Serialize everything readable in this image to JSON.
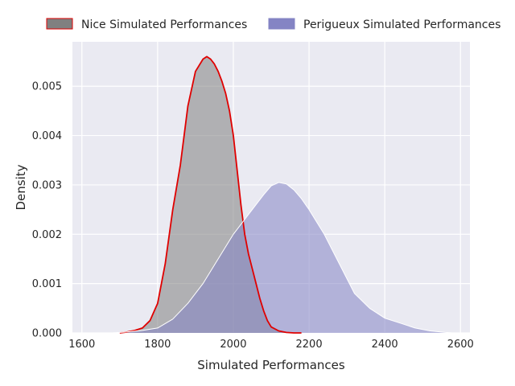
{
  "chart_data": {
    "type": "area",
    "title": "",
    "xlabel": "Simulated Performances",
    "ylabel": "Density",
    "xlim": [
      1575,
      2625
    ],
    "ylim": [
      0,
      0.0059
    ],
    "xticks": [
      1600,
      1800,
      2000,
      2200,
      2400,
      2600
    ],
    "yticks": [
      0.0,
      0.001,
      0.002,
      0.003,
      0.004,
      0.005,
      0.006
    ],
    "ytick_labels": [
      "0.000",
      "0.001",
      "0.002",
      "0.003",
      "0.004",
      "0.005"
    ],
    "grid": true,
    "legend_position": "top",
    "series": [
      {
        "name": "Nice Simulated Performances",
        "fill": "#808080",
        "line": "#e00000",
        "x": [
          1700,
          1720,
          1740,
          1760,
          1780,
          1800,
          1820,
          1840,
          1860,
          1880,
          1900,
          1920,
          1930,
          1940,
          1950,
          1960,
          1970,
          1980,
          1990,
          2000,
          2010,
          2020,
          2030,
          2040,
          2050,
          2060,
          2070,
          2080,
          2090,
          2100,
          2120,
          2140,
          2160,
          2180
        ],
        "y": [
          0.0,
          2e-05,
          5e-05,
          0.0001,
          0.00025,
          0.0006,
          0.0014,
          0.0025,
          0.0034,
          0.0046,
          0.0053,
          0.00555,
          0.0056,
          0.00555,
          0.00545,
          0.0053,
          0.0051,
          0.00485,
          0.0045,
          0.004,
          0.0033,
          0.0026,
          0.002,
          0.0016,
          0.0013,
          0.001,
          0.0007,
          0.00045,
          0.00025,
          0.00012,
          4e-05,
          1e-05,
          0.0,
          0.0
        ]
      },
      {
        "name": "Perigueux Simulated Performances",
        "fill": "#8484c4",
        "line": "#ffffff",
        "x": [
          1640,
          1680,
          1720,
          1760,
          1800,
          1840,
          1880,
          1920,
          1960,
          2000,
          2040,
          2080,
          2100,
          2120,
          2140,
          2160,
          2180,
          2200,
          2240,
          2280,
          2320,
          2360,
          2400,
          2440,
          2480,
          2520,
          2560,
          2580
        ],
        "y": [
          0.0,
          0.0,
          2e-05,
          5e-05,
          0.0001,
          0.00028,
          0.0006,
          0.001,
          0.0015,
          0.002,
          0.0024,
          0.0028,
          0.00298,
          0.00305,
          0.00302,
          0.0029,
          0.00272,
          0.0025,
          0.002,
          0.0014,
          0.0008,
          0.0005,
          0.0003,
          0.0002,
          0.0001,
          4e-05,
          1e-05,
          0.0
        ]
      }
    ]
  }
}
